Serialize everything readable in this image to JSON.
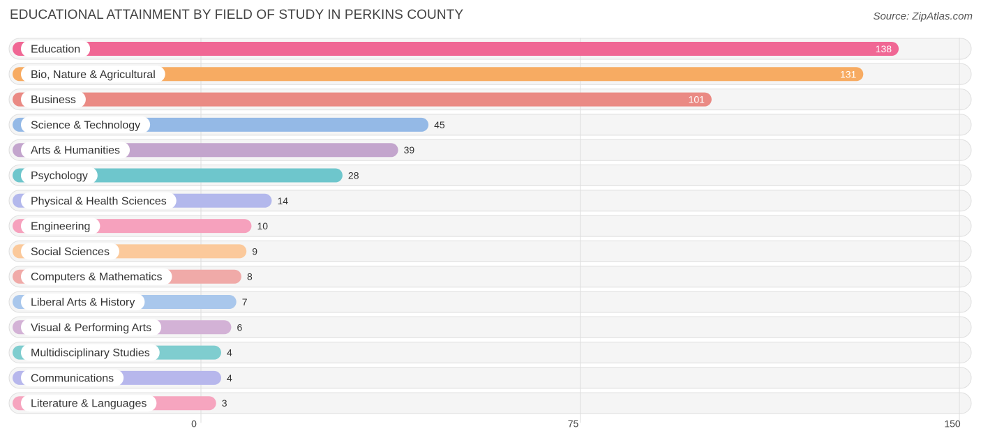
{
  "header": {
    "title": "EDUCATIONAL ATTAINMENT BY FIELD OF STUDY IN PERKINS COUNTY",
    "source": "Source: ZipAtlas.com"
  },
  "chart_data": {
    "type": "bar",
    "orientation": "horizontal",
    "title": "EDUCATIONAL ATTAINMENT BY FIELD OF STUDY IN PERKINS COUNTY",
    "categories": [
      "Education",
      "Bio, Nature & Agricultural",
      "Business",
      "Science & Technology",
      "Arts & Humanities",
      "Psychology",
      "Physical & Health Sciences",
      "Engineering",
      "Social Sciences",
      "Computers & Mathematics",
      "Liberal Arts & History",
      "Visual & Performing Arts",
      "Multidisciplinary Studies",
      "Communications",
      "Literature & Languages"
    ],
    "values": [
      138,
      131,
      101,
      45,
      39,
      28,
      14,
      10,
      9,
      8,
      7,
      6,
      4,
      4,
      3
    ],
    "colors": [
      "#f06794",
      "#f7ab62",
      "#ea8a84",
      "#94b9e6",
      "#c3a5cd",
      "#6ec6cc",
      "#b3b8ec",
      "#f6a1bd",
      "#fbc99b",
      "#f0aaa8",
      "#a9c7ec",
      "#d3b2d6",
      "#7fcdcf",
      "#b7b7ec",
      "#f6a5bf"
    ],
    "x_ticks": [
      0,
      75,
      150
    ],
    "xlim": [
      0,
      150
    ],
    "grid": true
  }
}
